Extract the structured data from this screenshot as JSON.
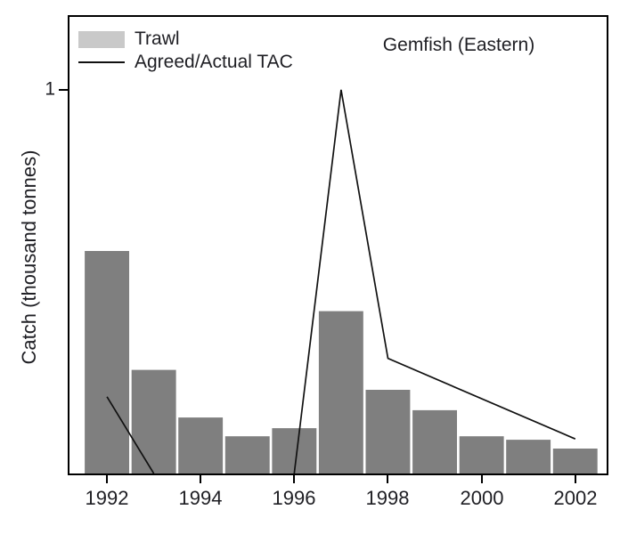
{
  "figure": {
    "title": "Gemfish (Eastern)",
    "ylabel": "Catch (thousand tonnes)",
    "colors": {
      "bar": "#7f7f7f",
      "legend_bar_swatch": "#c9c9c9",
      "tac_line": "#111111",
      "axis": "#000000",
      "text": "#1f1f24",
      "background": "#ffffff"
    }
  },
  "legend": {
    "items": [
      {
        "label": "Trawl",
        "marker": "bar-swatch"
      },
      {
        "label": "Agreed/Actual TAC",
        "marker": "line"
      }
    ]
  },
  "chart_data": {
    "type": "bar",
    "title": "Gemfish (Eastern)",
    "xlabel": "",
    "ylabel": "Catch (thousand tonnes)",
    "units": "thousand tonnes",
    "grid": false,
    "legend_position": "top-left",
    "x_ticks": [
      1992,
      1994,
      1996,
      1998,
      2000,
      2002
    ],
    "y_ticks": [
      1
    ],
    "xlim": [
      1991.2,
      2002.67
    ],
    "ylim": [
      0,
      1.19
    ],
    "bar_width_years": 0.95,
    "categories": [
      1992,
      1993,
      1994,
      1995,
      1996,
      1997,
      1998,
      1999,
      2000,
      2001,
      2002
    ],
    "series": [
      {
        "name": "Trawl",
        "type": "bar",
        "color": "#7f7f7f",
        "values": [
          0.58,
          0.27,
          0.146,
          0.097,
          0.118,
          0.423,
          0.218,
          0.165,
          0.097,
          0.088,
          0.065
        ]
      },
      {
        "name": "Agreed/Actual TAC",
        "type": "line",
        "color": "#111111",
        "segments": [
          [
            [
              1992,
              0.2
            ],
            [
              1993,
              0
            ]
          ],
          [
            [
              1996,
              0
            ],
            [
              1997,
              1.0
            ],
            [
              1998,
              0.3
            ],
            [
              2002,
              0.09
            ]
          ]
        ]
      }
    ]
  }
}
